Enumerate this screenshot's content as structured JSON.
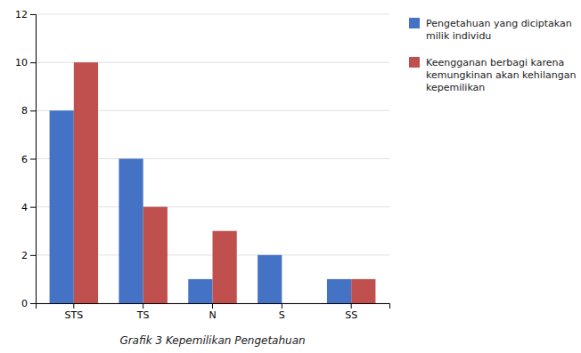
{
  "chart_data": {
    "type": "bar",
    "title": "Grafik 3 Kepemilikan Pengetahuan",
    "categories": [
      "STS",
      "TS",
      "N",
      "S",
      "SS"
    ],
    "series": [
      {
        "name": "Pengetahuan yang diciptakan\nmilik individu",
        "color": "#4472C4",
        "values": [
          8,
          6,
          1,
          2,
          1
        ]
      },
      {
        "name": "Keengganan berbagi karena\nkemungkinan akan kehilangan\nkepemilikan",
        "color": "#C0504D",
        "values": [
          10,
          4,
          3,
          0,
          1
        ]
      }
    ],
    "ylim": [
      0,
      12
    ],
    "yticks": [
      0,
      2,
      4,
      6,
      8,
      10,
      12
    ],
    "grid": true,
    "legend": "right"
  }
}
